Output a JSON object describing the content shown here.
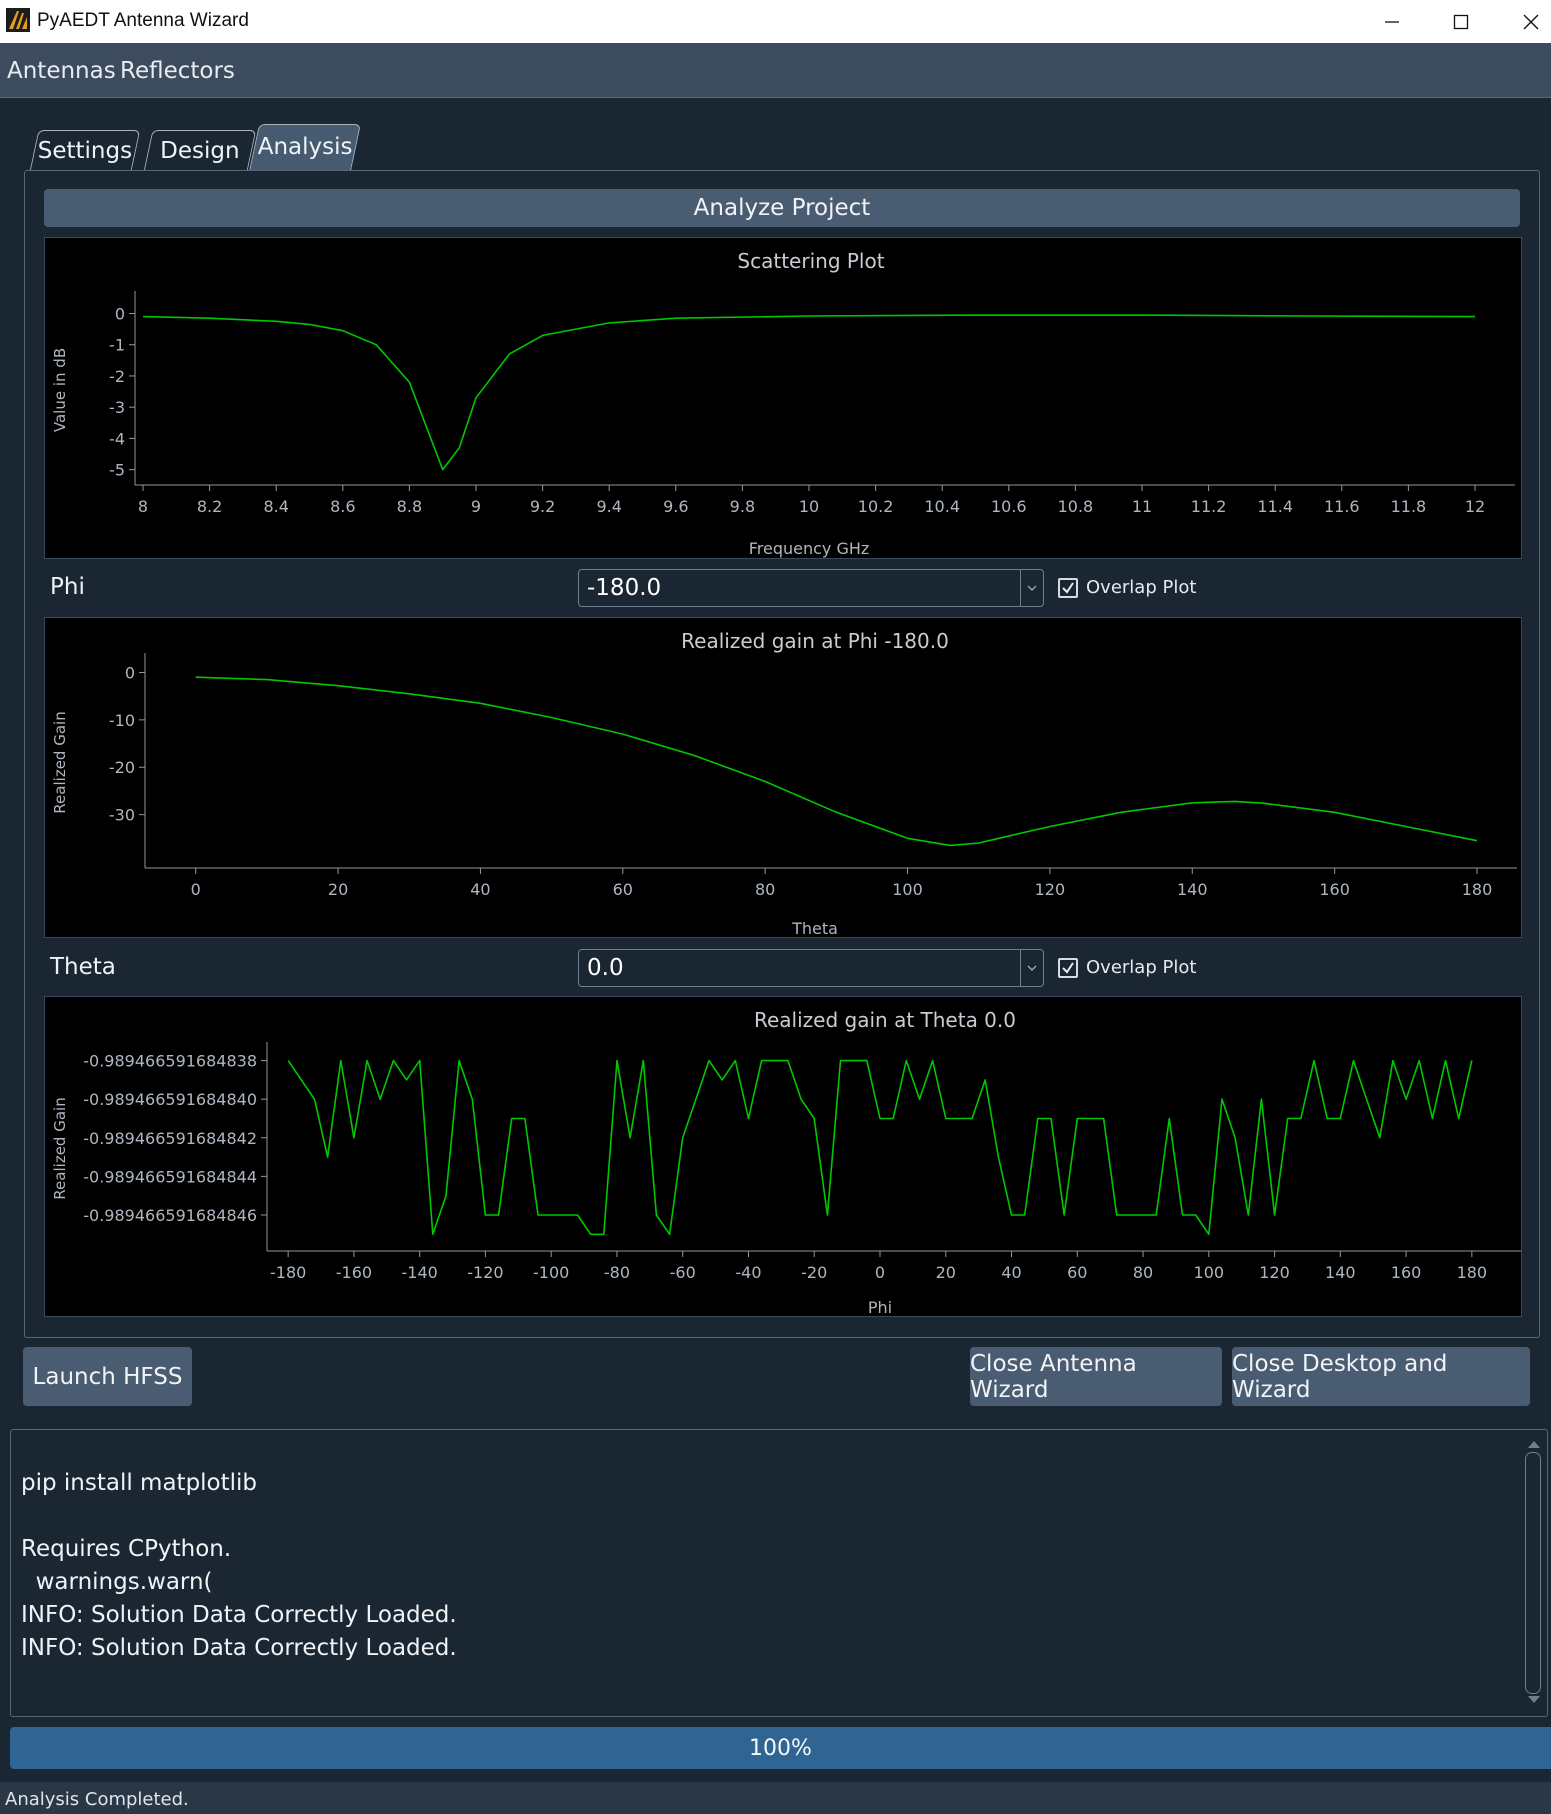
{
  "window": {
    "title": "PyAEDT Antenna Wizard"
  },
  "menu": {
    "items": [
      "Antennas",
      "Reflectors"
    ]
  },
  "tabs": [
    "Settings",
    "Design",
    "Analysis"
  ],
  "active_tab": "Analysis",
  "analyze_button": "Analyze Project",
  "colors": {
    "trace": "#00c800",
    "background": "#1b2633",
    "button": "#4a5c71",
    "progress": "#2f6493"
  },
  "plots": {
    "scattering": {
      "title": "Scattering Plot",
      "xlabel": "Frequency GHz",
      "ylabel": "Value in dB",
      "xticks": [
        "8",
        "8.2",
        "8.4",
        "8.6",
        "8.8",
        "9",
        "9.2",
        "9.4",
        "9.6",
        "9.8",
        "10",
        "10.2",
        "10.4",
        "10.6",
        "10.8",
        "11",
        "11.2",
        "11.4",
        "11.6",
        "11.8",
        "12"
      ],
      "yticks": [
        "0",
        "-1",
        "-2",
        "-3",
        "-4",
        "-5"
      ]
    },
    "phi": {
      "title": "Realized gain at Phi -180.0",
      "xlabel": "Theta",
      "ylabel": "Realized Gain",
      "xticks": [
        "0",
        "20",
        "40",
        "60",
        "80",
        "100",
        "120",
        "140",
        "160",
        "180"
      ],
      "yticks": [
        "0",
        "-10",
        "-20",
        "-30"
      ]
    },
    "theta": {
      "title": "Realized gain at Theta 0.0",
      "xlabel": "Phi",
      "ylabel": "Realized Gain",
      "xticks": [
        "-180",
        "-160",
        "-140",
        "-120",
        "-100",
        "-80",
        "-60",
        "-40",
        "-20",
        "0",
        "20",
        "40",
        "60",
        "80",
        "100",
        "120",
        "140",
        "160",
        "180"
      ],
      "yticks": [
        "-0.989466591684838",
        "-0.989466591684840",
        "-0.989466591684842",
        "-0.989466591684844",
        "-0.989466591684846"
      ]
    }
  },
  "chart_data": [
    {
      "type": "line",
      "title": "Scattering Plot",
      "xlabel": "Frequency GHz",
      "ylabel": "Value in dB",
      "xlim": [
        8,
        12
      ],
      "ylim": [
        -5.3,
        0.4
      ],
      "series": [
        {
          "x": [
            8,
            8.2,
            8.4,
            8.5,
            8.6,
            8.7,
            8.8,
            8.85,
            8.9,
            8.95,
            9,
            9.1,
            9.2,
            9.4,
            9.6,
            10,
            10.5,
            11,
            11.5,
            12
          ],
          "values": [
            -0.1,
            -0.15,
            -0.25,
            -0.35,
            -0.55,
            -1.0,
            -2.2,
            -3.6,
            -5.0,
            -4.3,
            -2.7,
            -1.3,
            -0.7,
            -0.3,
            -0.15,
            -0.08,
            -0.05,
            -0.05,
            -0.08,
            -0.1
          ]
        }
      ]
    },
    {
      "type": "line",
      "title": "Realized gain at Phi -180.0",
      "xlabel": "Theta",
      "ylabel": "Realized Gain",
      "xlim": [
        -6,
        180
      ],
      "ylim": [
        -40,
        2
      ],
      "series": [
        {
          "x": [
            0,
            10,
            20,
            30,
            40,
            50,
            60,
            70,
            80,
            90,
            100,
            106,
            110,
            120,
            130,
            140,
            146,
            150,
            160,
            170,
            180
          ],
          "values": [
            -1,
            -1.5,
            -2.8,
            -4.5,
            -6.5,
            -9.5,
            -13,
            -17.5,
            -23,
            -29.5,
            -35,
            -36.5,
            -36,
            -32.5,
            -29.5,
            -27.5,
            -27.2,
            -27.6,
            -29.5,
            -32.5,
            -35.5
          ]
        }
      ]
    },
    {
      "type": "line",
      "title": "Realized gain at Theta 0.0",
      "xlabel": "Phi",
      "ylabel": "Realized Gain",
      "xlim": [
        -184,
        184
      ],
      "ylim": [
        -0.9894665916848475,
        -0.9894665916848375
      ],
      "series": [
        {
          "x": [
            -180,
            -176,
            -172,
            -168,
            -164,
            -160,
            -156,
            -152,
            -148,
            -144,
            -140,
            -136,
            -132,
            -128,
            -124,
            -120,
            -116,
            -112,
            -108,
            -104,
            -100,
            -96,
            -92,
            -88,
            -84,
            -80,
            -76,
            -72,
            -68,
            -64,
            -60,
            -56,
            -52,
            -48,
            -44,
            -40,
            -36,
            -32,
            -28,
            -24,
            -20,
            -16,
            -12,
            -8,
            -4,
            0,
            4,
            8,
            12,
            16,
            20,
            24,
            28,
            32,
            36,
            40,
            44,
            48,
            52,
            56,
            60,
            64,
            68,
            72,
            76,
            80,
            84,
            88,
            92,
            96,
            100,
            104,
            108,
            112,
            116,
            120,
            124,
            128,
            132,
            136,
            140,
            144,
            148,
            152,
            156,
            160,
            164,
            168,
            172,
            176,
            180
          ],
          "values": [
            -0.989466591684838,
            -0.989466591684839,
            -0.98946659168484,
            -0.989466591684843,
            -0.989466591684838,
            -0.989466591684842,
            -0.989466591684838,
            -0.98946659168484,
            -0.989466591684838,
            -0.989466591684839,
            -0.989466591684838,
            -0.989466591684847,
            -0.989466591684845,
            -0.989466591684838,
            -0.98946659168484,
            -0.989466591684846,
            -0.989466591684846,
            -0.989466591684841,
            -0.989466591684841,
            -0.989466591684846,
            -0.989466591684846,
            -0.989466591684846,
            -0.989466591684846,
            -0.989466591684847,
            -0.989466591684847,
            -0.989466591684838,
            -0.989466591684842,
            -0.989466591684838,
            -0.989466591684846,
            -0.989466591684847,
            -0.989466591684842,
            -0.98946659168484,
            -0.989466591684838,
            -0.989466591684839,
            -0.989466591684838,
            -0.989466591684841,
            -0.989466591684838,
            -0.989466591684838,
            -0.989466591684838,
            -0.98946659168484,
            -0.989466591684841,
            -0.989466591684846,
            -0.989466591684838,
            -0.989466591684838,
            -0.989466591684838,
            -0.989466591684841,
            -0.989466591684841,
            -0.989466591684838,
            -0.98946659168484,
            -0.989466591684838,
            -0.989466591684841,
            -0.989466591684841,
            -0.989466591684841,
            -0.989466591684839,
            -0.989466591684843,
            -0.989466591684846,
            -0.989466591684846,
            -0.989466591684841,
            -0.989466591684841,
            -0.989466591684846,
            -0.989466591684841,
            -0.989466591684841,
            -0.989466591684841,
            -0.989466591684846,
            -0.989466591684846,
            -0.989466591684846,
            -0.989466591684846,
            -0.989466591684841,
            -0.989466591684846,
            -0.989466591684846,
            -0.989466591684847,
            -0.98946659168484,
            -0.989466591684842,
            -0.989466591684846,
            -0.98946659168484,
            -0.989466591684846,
            -0.989466591684841,
            -0.989466591684841,
            -0.989466591684838,
            -0.989466591684841,
            -0.989466591684841,
            -0.989466591684838,
            -0.98946659168484,
            -0.989466591684842,
            -0.989466591684838,
            -0.98946659168484,
            -0.989466591684838,
            -0.989466591684841,
            -0.989466591684838,
            -0.989466591684841,
            -0.989466591684838
          ]
        }
      ]
    }
  ],
  "phi_control": {
    "label": "Phi",
    "value": "-180.0",
    "overlap_label": "Overlap Plot"
  },
  "theta_control": {
    "label": "Theta",
    "value": "0.0",
    "overlap_label": "Overlap Plot"
  },
  "buttons": {
    "launch": "Launch HFSS",
    "close_wizard": "Close Antenna Wizard",
    "close_all": "Close Desktop and Wizard"
  },
  "log": [
    "pip install matplotlib",
    "",
    "Requires CPython.",
    "  warnings.warn(",
    "INFO: Solution Data Correctly Loaded.",
    "INFO: Solution Data Correctly Loaded."
  ],
  "progress": {
    "label": "100%",
    "value": 100
  },
  "status": "Analysis Completed."
}
